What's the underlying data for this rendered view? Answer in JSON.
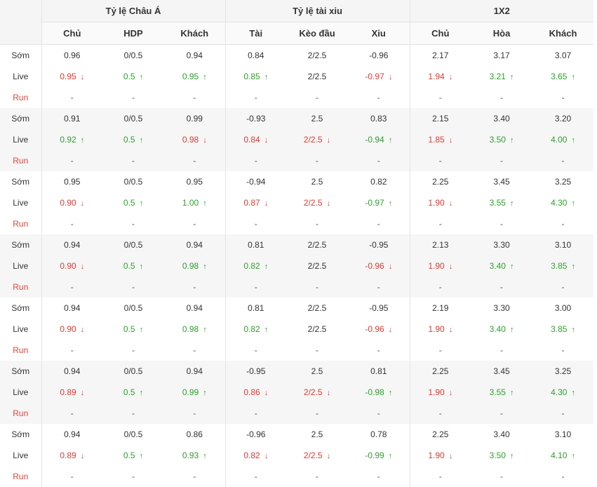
{
  "groups": [
    {
      "title": "Tỷ lệ Châu Á",
      "columns": [
        "Chủ",
        "HDP",
        "Khách"
      ]
    },
    {
      "title": "Tỷ lệ tài xiu",
      "columns": [
        "Tài",
        "Kèo đầu",
        "Xiu"
      ]
    },
    {
      "title": "1X2",
      "columns": [
        "Chủ",
        "Hòa",
        "Khách"
      ]
    }
  ],
  "row_labels": {
    "som": "Sớm",
    "live": "Live",
    "run": "Run"
  },
  "arrow_icons": {
    "up": "↑",
    "down": "↓"
  },
  "colors": {
    "up": "#2ea02e",
    "down": "#e03a32",
    "run_label": "#e0473c"
  },
  "blocks": [
    {
      "som": [
        "0.96",
        "0/0.5",
        "0.94",
        "0.84",
        "2/2.5",
        "-0.96",
        "2.17",
        "3.17",
        "3.07"
      ],
      "live": [
        [
          "0.95",
          "down"
        ],
        [
          "0.5",
          "up"
        ],
        [
          "0.95",
          "up"
        ],
        [
          "0.85",
          "up"
        ],
        [
          "2/2.5",
          ""
        ],
        [
          "-0.97",
          "down"
        ],
        [
          "1.94",
          "down"
        ],
        [
          "3.21",
          "up"
        ],
        [
          "3.65",
          "up"
        ]
      ],
      "run": [
        "-",
        "-",
        "-",
        "-",
        "-",
        "-",
        "-",
        "-",
        "-"
      ]
    },
    {
      "som": [
        "0.91",
        "0/0.5",
        "0.99",
        "-0.93",
        "2.5",
        "0.83",
        "2.15",
        "3.40",
        "3.20"
      ],
      "live": [
        [
          "0.92",
          "up"
        ],
        [
          "0.5",
          "up"
        ],
        [
          "0.98",
          "down"
        ],
        [
          "0.84",
          "down"
        ],
        [
          "2/2.5",
          "down"
        ],
        [
          "-0.94",
          "up"
        ],
        [
          "1.85",
          "down"
        ],
        [
          "3.50",
          "up"
        ],
        [
          "4.00",
          "up"
        ]
      ],
      "run": [
        "-",
        "-",
        "-",
        "-",
        "-",
        "-",
        "-",
        "-",
        "-"
      ]
    },
    {
      "som": [
        "0.95",
        "0/0.5",
        "0.95",
        "-0.94",
        "2.5",
        "0.82",
        "2.25",
        "3.45",
        "3.25"
      ],
      "live": [
        [
          "0.90",
          "down"
        ],
        [
          "0.5",
          "up"
        ],
        [
          "1.00",
          "up"
        ],
        [
          "0.87",
          "down"
        ],
        [
          "2/2.5",
          "down"
        ],
        [
          "-0.97",
          "up"
        ],
        [
          "1.90",
          "down"
        ],
        [
          "3.55",
          "up"
        ],
        [
          "4.30",
          "up"
        ]
      ],
      "run": [
        "-",
        "-",
        "-",
        "-",
        "-",
        "-",
        "-",
        "-",
        "-"
      ]
    },
    {
      "som": [
        "0.94",
        "0/0.5",
        "0.94",
        "0.81",
        "2/2.5",
        "-0.95",
        "2.13",
        "3.30",
        "3.10"
      ],
      "live": [
        [
          "0.90",
          "down"
        ],
        [
          "0.5",
          "up"
        ],
        [
          "0.98",
          "up"
        ],
        [
          "0.82",
          "up"
        ],
        [
          "2/2.5",
          ""
        ],
        [
          "-0.96",
          "down"
        ],
        [
          "1.90",
          "down"
        ],
        [
          "3.40",
          "up"
        ],
        [
          "3.85",
          "up"
        ]
      ],
      "run": [
        "-",
        "-",
        "-",
        "-",
        "-",
        "-",
        "-",
        "-",
        "-"
      ]
    },
    {
      "som": [
        "0.94",
        "0/0.5",
        "0.94",
        "0.81",
        "2/2.5",
        "-0.95",
        "2.19",
        "3.30",
        "3.00"
      ],
      "live": [
        [
          "0.90",
          "down"
        ],
        [
          "0.5",
          "up"
        ],
        [
          "0.98",
          "up"
        ],
        [
          "0.82",
          "up"
        ],
        [
          "2/2.5",
          ""
        ],
        [
          "-0.96",
          "down"
        ],
        [
          "1.90",
          "down"
        ],
        [
          "3.40",
          "up"
        ],
        [
          "3.85",
          "up"
        ]
      ],
      "run": [
        "-",
        "-",
        "-",
        "-",
        "-",
        "-",
        "-",
        "-",
        "-"
      ]
    },
    {
      "som": [
        "0.94",
        "0/0.5",
        "0.94",
        "-0.95",
        "2.5",
        "0.81",
        "2.25",
        "3.45",
        "3.25"
      ],
      "live": [
        [
          "0.89",
          "down"
        ],
        [
          "0.5",
          "up"
        ],
        [
          "0.99",
          "up"
        ],
        [
          "0.86",
          "down"
        ],
        [
          "2/2.5",
          "down"
        ],
        [
          "-0.98",
          "up"
        ],
        [
          "1.90",
          "down"
        ],
        [
          "3.55",
          "up"
        ],
        [
          "4.30",
          "up"
        ]
      ],
      "run": [
        "-",
        "-",
        "-",
        "-",
        "-",
        "-",
        "-",
        "-",
        "-"
      ]
    },
    {
      "som": [
        "0.94",
        "0/0.5",
        "0.86",
        "-0.96",
        "2.5",
        "0.78",
        "2.25",
        "3.40",
        "3.10"
      ],
      "live": [
        [
          "0.89",
          "down"
        ],
        [
          "0.5",
          "up"
        ],
        [
          "0.93",
          "up"
        ],
        [
          "0.82",
          "down"
        ],
        [
          "2/2.5",
          "down"
        ],
        [
          "-0.99",
          "up"
        ],
        [
          "1.90",
          "down"
        ],
        [
          "3.50",
          "up"
        ],
        [
          "4.10",
          "up"
        ]
      ],
      "run": [
        "-",
        "-",
        "-",
        "-",
        "-",
        "-",
        "-",
        "-",
        "-"
      ]
    }
  ]
}
